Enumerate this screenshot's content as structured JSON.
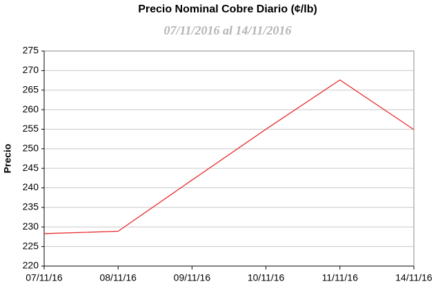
{
  "chart_data": {
    "type": "line",
    "title": "Precio Nominal Cobre Diario (¢/lb)",
    "subtitle": "07/11/2016 al 14/11/2016",
    "y_label": "Precio",
    "categories": [
      "07/11/16",
      "08/11/16",
      "09/11/16",
      "10/11/16",
      "11/11/16",
      "14/11/16"
    ],
    "series": [
      {
        "name": "Precio",
        "color": "#e8282b",
        "values": [
          228.3,
          228.9,
          242,
          255,
          267.6,
          254.9
        ]
      }
    ],
    "ylim": [
      220,
      275
    ],
    "yticks": [
      220,
      225,
      230,
      235,
      240,
      245,
      250,
      255,
      260,
      265,
      270,
      275
    ],
    "grid": true
  }
}
